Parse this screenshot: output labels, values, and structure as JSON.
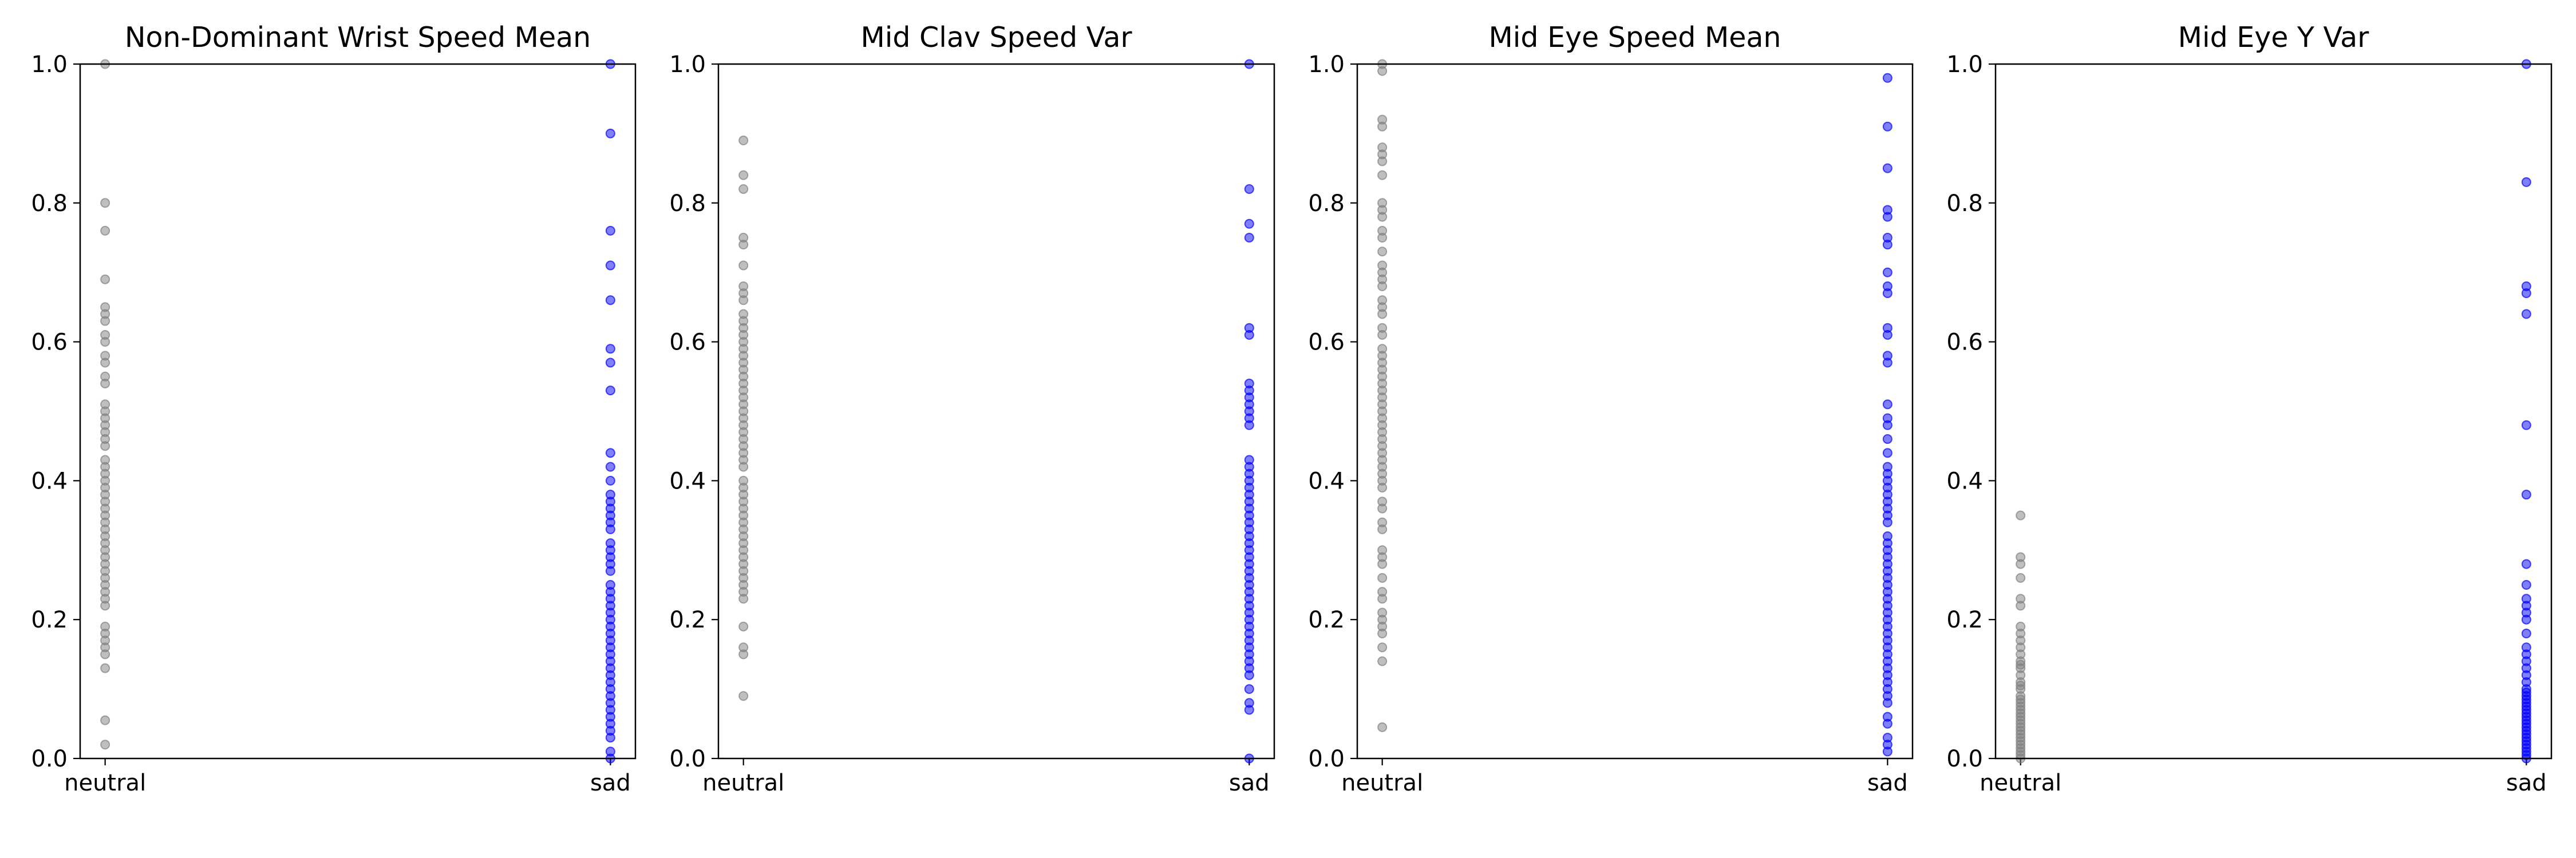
{
  "chart_data": [
    {
      "type": "scatter",
      "title": "Non-Dominant Wrist Speed Mean",
      "xlabel": "",
      "ylabel": "",
      "categories": [
        "neutral",
        "sad"
      ],
      "ylim": [
        0,
        1
      ],
      "yticks": [
        0.0,
        0.2,
        0.4,
        0.6,
        0.8,
        1.0
      ],
      "grid": false,
      "series": [
        {
          "category": "neutral",
          "color": "#808080",
          "values": [
            1.0,
            0.8,
            0.76,
            0.69,
            0.65,
            0.64,
            0.63,
            0.61,
            0.6,
            0.58,
            0.57,
            0.55,
            0.54,
            0.51,
            0.5,
            0.49,
            0.48,
            0.47,
            0.46,
            0.45,
            0.43,
            0.42,
            0.41,
            0.4,
            0.39,
            0.38,
            0.37,
            0.36,
            0.35,
            0.34,
            0.33,
            0.32,
            0.31,
            0.3,
            0.29,
            0.28,
            0.27,
            0.26,
            0.25,
            0.24,
            0.23,
            0.22,
            0.19,
            0.18,
            0.17,
            0.16,
            0.15,
            0.13,
            0.055,
            0.02
          ]
        },
        {
          "category": "sad",
          "color": "#0000ff",
          "values": [
            1.0,
            0.9,
            0.76,
            0.71,
            0.66,
            0.59,
            0.57,
            0.53,
            0.44,
            0.42,
            0.4,
            0.38,
            0.37,
            0.36,
            0.35,
            0.34,
            0.33,
            0.31,
            0.3,
            0.29,
            0.28,
            0.27,
            0.25,
            0.24,
            0.23,
            0.22,
            0.21,
            0.2,
            0.19,
            0.18,
            0.17,
            0.16,
            0.15,
            0.14,
            0.13,
            0.12,
            0.11,
            0.1,
            0.09,
            0.08,
            0.07,
            0.06,
            0.05,
            0.04,
            0.03,
            0.01,
            0.0
          ]
        }
      ]
    },
    {
      "type": "scatter",
      "title": "Mid Clav Speed Var",
      "xlabel": "",
      "ylabel": "",
      "categories": [
        "neutral",
        "sad"
      ],
      "ylim": [
        0,
        1
      ],
      "yticks": [
        0.0,
        0.2,
        0.4,
        0.6,
        0.8,
        1.0
      ],
      "grid": false,
      "series": [
        {
          "category": "neutral",
          "color": "#808080",
          "values": [
            0.89,
            0.84,
            0.82,
            0.75,
            0.74,
            0.71,
            0.68,
            0.67,
            0.66,
            0.64,
            0.63,
            0.62,
            0.61,
            0.6,
            0.59,
            0.58,
            0.57,
            0.56,
            0.55,
            0.54,
            0.53,
            0.52,
            0.51,
            0.5,
            0.49,
            0.48,
            0.47,
            0.46,
            0.45,
            0.44,
            0.43,
            0.42,
            0.4,
            0.39,
            0.38,
            0.37,
            0.36,
            0.35,
            0.34,
            0.33,
            0.32,
            0.31,
            0.3,
            0.29,
            0.28,
            0.27,
            0.26,
            0.25,
            0.24,
            0.23,
            0.19,
            0.16,
            0.15,
            0.09
          ]
        },
        {
          "category": "sad",
          "color": "#0000ff",
          "values": [
            1.0,
            0.82,
            0.77,
            0.75,
            0.62,
            0.61,
            0.54,
            0.53,
            0.52,
            0.51,
            0.5,
            0.49,
            0.48,
            0.43,
            0.42,
            0.41,
            0.4,
            0.39,
            0.38,
            0.37,
            0.36,
            0.35,
            0.34,
            0.33,
            0.32,
            0.31,
            0.3,
            0.29,
            0.28,
            0.27,
            0.26,
            0.25,
            0.24,
            0.23,
            0.22,
            0.21,
            0.2,
            0.19,
            0.18,
            0.17,
            0.16,
            0.15,
            0.14,
            0.13,
            0.12,
            0.1,
            0.08,
            0.07,
            0.0
          ]
        }
      ]
    },
    {
      "type": "scatter",
      "title": "Mid Eye Speed Mean",
      "xlabel": "",
      "ylabel": "",
      "categories": [
        "neutral",
        "sad"
      ],
      "ylim": [
        0,
        1
      ],
      "yticks": [
        0.0,
        0.2,
        0.4,
        0.6,
        0.8,
        1.0
      ],
      "grid": false,
      "series": [
        {
          "category": "neutral",
          "color": "#808080",
          "values": [
            1.0,
            0.99,
            0.92,
            0.91,
            0.88,
            0.87,
            0.86,
            0.84,
            0.8,
            0.79,
            0.78,
            0.76,
            0.75,
            0.73,
            0.71,
            0.7,
            0.69,
            0.68,
            0.66,
            0.65,
            0.64,
            0.62,
            0.61,
            0.59,
            0.58,
            0.57,
            0.56,
            0.55,
            0.54,
            0.53,
            0.52,
            0.51,
            0.5,
            0.49,
            0.48,
            0.47,
            0.46,
            0.45,
            0.44,
            0.43,
            0.42,
            0.41,
            0.4,
            0.39,
            0.37,
            0.36,
            0.34,
            0.33,
            0.3,
            0.29,
            0.28,
            0.26,
            0.24,
            0.23,
            0.21,
            0.2,
            0.19,
            0.18,
            0.16,
            0.14,
            0.045
          ]
        },
        {
          "category": "sad",
          "color": "#0000ff",
          "values": [
            0.98,
            0.91,
            0.85,
            0.79,
            0.78,
            0.75,
            0.74,
            0.7,
            0.68,
            0.67,
            0.62,
            0.61,
            0.58,
            0.57,
            0.51,
            0.49,
            0.48,
            0.46,
            0.44,
            0.42,
            0.41,
            0.4,
            0.39,
            0.38,
            0.37,
            0.36,
            0.35,
            0.34,
            0.32,
            0.31,
            0.3,
            0.29,
            0.28,
            0.27,
            0.26,
            0.25,
            0.24,
            0.23,
            0.22,
            0.21,
            0.2,
            0.19,
            0.18,
            0.17,
            0.16,
            0.15,
            0.14,
            0.13,
            0.12,
            0.11,
            0.1,
            0.09,
            0.08,
            0.06,
            0.05,
            0.03,
            0.02,
            0.01
          ]
        }
      ]
    },
    {
      "type": "scatter",
      "title": "Mid Eye Y Var",
      "xlabel": "",
      "ylabel": "",
      "categories": [
        "neutral",
        "sad"
      ],
      "ylim": [
        0,
        1
      ],
      "yticks": [
        0.0,
        0.2,
        0.4,
        0.6,
        0.8,
        1.0
      ],
      "grid": false,
      "series": [
        {
          "category": "neutral",
          "color": "#808080",
          "values": [
            0.35,
            0.29,
            0.28,
            0.26,
            0.23,
            0.22,
            0.19,
            0.18,
            0.17,
            0.16,
            0.15,
            0.14,
            0.135,
            0.13,
            0.12,
            0.11,
            0.105,
            0.1,
            0.09,
            0.085,
            0.08,
            0.075,
            0.07,
            0.065,
            0.06,
            0.055,
            0.05,
            0.045,
            0.04,
            0.035,
            0.03,
            0.025,
            0.02,
            0.015,
            0.01,
            0.005,
            0.0
          ]
        },
        {
          "category": "sad",
          "color": "#0000ff",
          "values": [
            1.0,
            0.83,
            0.68,
            0.67,
            0.64,
            0.48,
            0.38,
            0.28,
            0.25,
            0.23,
            0.22,
            0.21,
            0.2,
            0.18,
            0.16,
            0.15,
            0.14,
            0.13,
            0.12,
            0.11,
            0.1,
            0.095,
            0.09,
            0.085,
            0.08,
            0.075,
            0.07,
            0.065,
            0.06,
            0.055,
            0.05,
            0.045,
            0.04,
            0.035,
            0.03,
            0.025,
            0.02,
            0.015,
            0.01,
            0.005,
            0.0
          ]
        }
      ]
    }
  ]
}
